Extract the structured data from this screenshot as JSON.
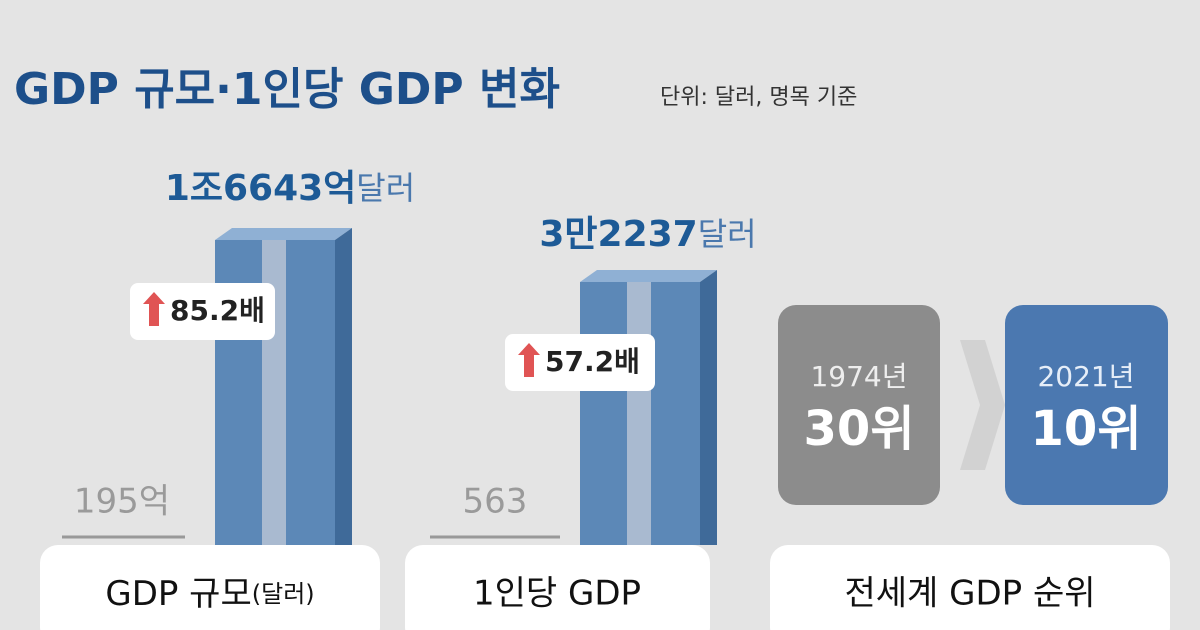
{
  "header": {
    "title": "GDP 규모·1인당 GDP 변화",
    "unit": "단위: 달러, 명목 기준"
  },
  "panels": [
    {
      "start": "195억",
      "end_value": "1조6643억",
      "end_unit": "달러",
      "growth": "85.2배",
      "label": "GDP 규모",
      "label_unit": "(달러)"
    },
    {
      "start": "563",
      "end_value": "3만2237",
      "end_unit": "달러",
      "growth": "57.2배",
      "label": "1인당 GDP"
    }
  ],
  "ranking": {
    "label": "전세계 GDP 순위",
    "before": {
      "year": "1974년",
      "rank": "30위"
    },
    "after": {
      "year": "2021년",
      "rank": "10위"
    }
  }
}
